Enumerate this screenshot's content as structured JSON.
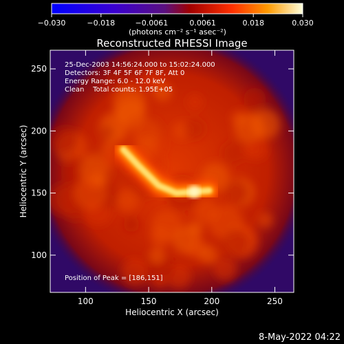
{
  "chart_data": {
    "type": "heatmap",
    "title": "Reconstructed RHESSI Image",
    "xlabel": "Heliocentric X (arcsec)",
    "ylabel": "Heliocentric Y (arcsec)",
    "xlim": [
      72,
      265
    ],
    "ylim": [
      70,
      265
    ],
    "x_ticks": [
      100,
      150,
      200,
      250
    ],
    "y_ticks": [
      100,
      150,
      200,
      250
    ],
    "colorbar": {
      "range": [
        -0.03,
        0.03
      ],
      "tick_values": [
        -0.03,
        -0.0182,
        -0.0061,
        0.0061,
        0.0182,
        0.03
      ],
      "tick_labels": [
        "−0.030",
        "−0.018",
        "−0.0061",
        "0.0061",
        "0.018",
        "0.030"
      ],
      "unit_label": "(photons cm⁻² s⁻¹ asec⁻²)",
      "colormap": "red-temperature"
    },
    "annotations": [
      "25-Dec-2003 14:56:24.000 to 15:02:24.000",
      "Detectors: 3F 4F 5F 6F 7F 8F, Att 0",
      "Energy Range: 6.0 - 12.0 keV",
      "Clean    Total counts: 1.95E+05"
    ],
    "peak_label": "Position of Peak = [186,151]",
    "peak": [
      186,
      151
    ],
    "loop_source": [
      [
        130,
        185
      ],
      [
        142,
        172
      ],
      [
        158,
        156
      ],
      [
        172,
        150
      ],
      [
        186,
        151
      ],
      [
        198,
        152
      ]
    ],
    "disk_center": [
      168,
      168
    ],
    "disk_radius": 95,
    "grid": false
  },
  "footer_timestamp": "8-May-2022 04:22"
}
